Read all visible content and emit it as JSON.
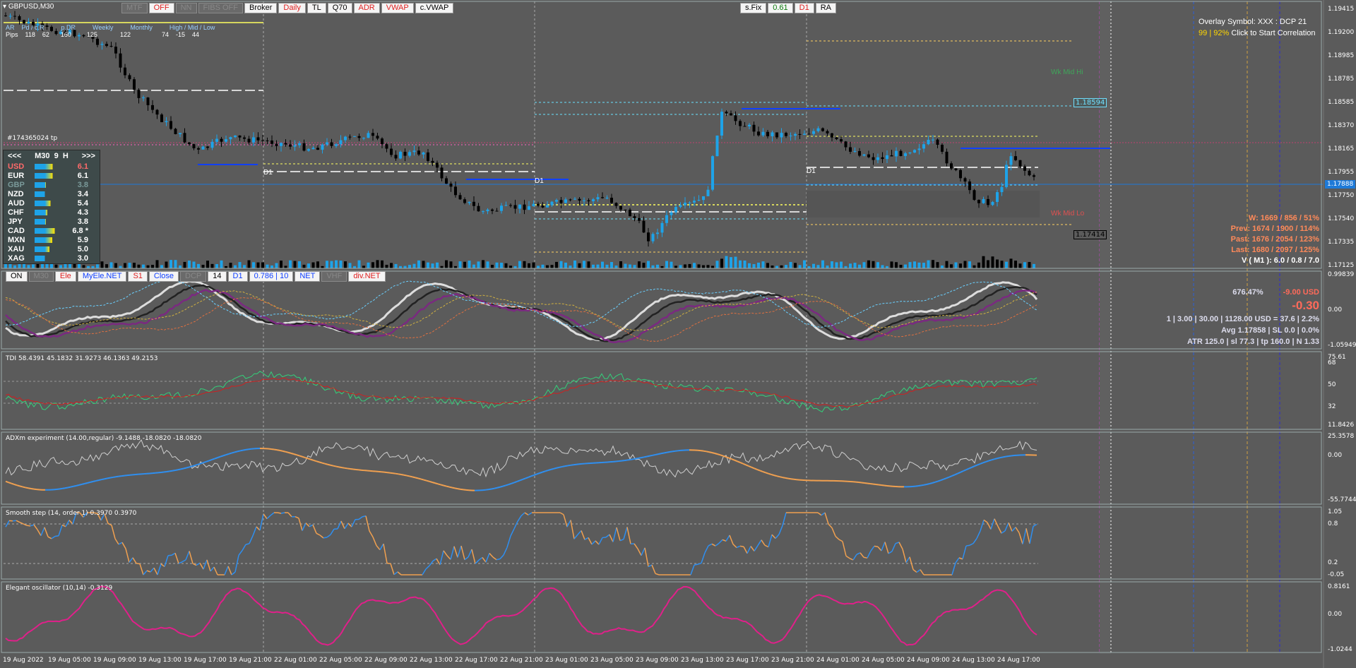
{
  "window": {
    "symbol_title": "GBPUSD,M30"
  },
  "toolbar_top": [
    {
      "label": "MTF",
      "style": "dim"
    },
    {
      "label": "OFF",
      "style": "red"
    },
    {
      "label": "NN",
      "style": "dim"
    },
    {
      "label": "FIBS OFF",
      "style": "dim"
    },
    {
      "label": "Broker",
      "style": "plain"
    },
    {
      "label": "Daily",
      "style": "red"
    },
    {
      "label": "TL",
      "style": "plain"
    },
    {
      "label": "Q70",
      "style": "plain"
    },
    {
      "label": "ADR",
      "style": "red"
    },
    {
      "label": "VWAP",
      "style": "red"
    },
    {
      "label": "c.VWAP",
      "style": "plain"
    }
  ],
  "toolbar_sfix": [
    {
      "label": "s.Fix",
      "style": "plain"
    },
    {
      "label": "0.61",
      "style": "grn"
    },
    {
      "label": "D1",
      "style": "red"
    },
    {
      "label": "RA",
      "style": "plain"
    }
  ],
  "toolbar_indicator": [
    {
      "label": "ON",
      "style": "plain"
    },
    {
      "label": "M30",
      "style": "dim"
    },
    {
      "label": "Ele",
      "style": "red"
    },
    {
      "label": "MyEle.NET",
      "style": "blue"
    },
    {
      "label": "S1",
      "style": "red"
    },
    {
      "label": "Close",
      "style": "blue"
    },
    {
      "label": "DCP",
      "style": "dim"
    },
    {
      "label": "14",
      "style": "plain"
    },
    {
      "label": "D1",
      "style": "blue"
    },
    {
      "label": "0.786 | 10",
      "style": "blue"
    },
    {
      "label": "NET",
      "style": "blue"
    },
    {
      "label": "VHF",
      "style": "dim"
    },
    {
      "label": "div.NET",
      "style": "red"
    }
  ],
  "adr_table": {
    "headers": [
      "AR",
      "Pd / c.R",
      "p.DR",
      "Weekly",
      "Monthly",
      "High / Mid / Low"
    ],
    "row_label": "Pips",
    "values": [
      "118",
      "62",
      "160",
      "125",
      "122",
      "74",
      "-15",
      "44"
    ]
  },
  "ticket_label": "#174365024 tp",
  "strength_panel": {
    "prev": "<<<",
    "timeframe": "M30",
    "bars": "9",
    "mode": "H",
    "next": ">>>",
    "rows": [
      {
        "cur": "USD",
        "val": "6.1",
        "level": 0.61,
        "color": "#ff6a6a"
      },
      {
        "cur": "EUR",
        "val": "6.1",
        "level": 0.61,
        "color": "#ffffff"
      },
      {
        "cur": "GBP",
        "val": "3.8",
        "level": 0.38,
        "color": "#7a9a9a"
      },
      {
        "cur": "NZD",
        "val": "3.4",
        "level": 0.34,
        "color": "#ffffff"
      },
      {
        "cur": "AUD",
        "val": "5.4",
        "level": 0.54,
        "color": "#ffffff"
      },
      {
        "cur": "CHF",
        "val": "4.3",
        "level": 0.43,
        "color": "#ffffff"
      },
      {
        "cur": "JPY",
        "val": "3.8",
        "level": 0.38,
        "color": "#ffffff"
      },
      {
        "cur": "CAD",
        "val": "6.8 *",
        "level": 0.68,
        "color": "#ffffff"
      },
      {
        "cur": "MXN",
        "val": "5.9",
        "level": 0.59,
        "color": "#ffffff"
      },
      {
        "cur": "XAU",
        "val": "5.0",
        "level": 0.5,
        "color": "#ffffff"
      },
      {
        "cur": "XAG",
        "val": "3.0",
        "level": 0.3,
        "color": "#ffffff"
      }
    ]
  },
  "overlay": {
    "line1": "Overlay Symbol: XXX : DCP 21",
    "line2_a": "99",
    "line2_sep": "|",
    "line2_b": "92%",
    "line2_c": "Click to Start Correlation"
  },
  "main_labels": {
    "wk_mid_hi": "Wk Mid Hi",
    "wk_mid_lo": "Wk Mid Lo",
    "d1_a": "D1",
    "d1_b": "D1",
    "d1_c": "D1",
    "box_high": "1.18594",
    "box_low": "1.17414",
    "current_price": "1.17888"
  },
  "stats_right": {
    "w": "W: 1669 / 856 / 51%",
    "prev": "Prev: 1674 / 1900 / 114%",
    "past": "Past: 1676 / 2054 / 123%",
    "last": "Last: 1680 / 2097 / 125%",
    "v": "V ( M1 ): 6.0 / 0.8 / 7.0"
  },
  "trade_info": {
    "pct": "676.47%",
    "usd": "-9.00 USD",
    "big": "-0.30",
    "line1": "1  |  3.00  |  30.00  |  1128.00 USD = 37.6  |  2.2%",
    "line2": "Avg 1.17858  |  SL 0.0  |  0.0%",
    "line3": "ATR 125.0  |  sl 77.3  |  tp 160.0  |  N 1.33"
  },
  "price_axis": [
    "1.19415",
    "1.19200",
    "1.18985",
    "1.18785",
    "1.18585",
    "1.18370",
    "1.18165",
    "1.17955",
    "1.17750",
    "1.17540",
    "1.17335",
    "1.17125"
  ],
  "subwindows": {
    "osc1_axis": [
      "0.99839",
      "0.00",
      "-1.05949"
    ],
    "tdi_title": "TDI 58.4391 45.1832 31.9273 46.1363 49.2153",
    "tdi_axis": [
      "75.61",
      "68",
      "50",
      "32",
      "11.8426"
    ],
    "adx_title": "ADXm experiment (14.00,regular) -9.1488 -18.0820 -18.0820",
    "adx_axis": [
      "25.3578",
      "0.00",
      "-55.7744"
    ],
    "smooth_title": "Smooth step (14, order 1) 0.3970 0.3970",
    "smooth_axis": [
      "1.05",
      "0.8",
      "0.2",
      "-0.05"
    ],
    "elegant_title": "Elegant oscillator (10,14) -0.3129",
    "elegant_axis": [
      "0.8161",
      "0.00",
      "-1.0244"
    ]
  },
  "time_axis": [
    "19 Aug 2022",
    "19 Aug 05:00",
    "19 Aug 09:00",
    "19 Aug 13:00",
    "19 Aug 17:00",
    "19 Aug 21:00",
    "22 Aug 01:00",
    "22 Aug 05:00",
    "22 Aug 09:00",
    "22 Aug 13:00",
    "22 Aug 17:00",
    "22 Aug 21:00",
    "23 Aug 01:00",
    "23 Aug 05:00",
    "23 Aug 09:00",
    "23 Aug 13:00",
    "23 Aug 17:00",
    "23 Aug 21:00",
    "24 Aug 01:00",
    "24 Aug 05:00",
    "24 Aug 09:00",
    "24 Aug 13:00",
    "24 Aug 17:00"
  ],
  "colors": {
    "bg": "#5b5b5b",
    "bull": "#1ea3e8",
    "bear": "#000000",
    "tdi_green": "#34d07a",
    "tdi_red": "#d02020",
    "adx_blue": "#2f8ff0",
    "adx_orange": "#f0a050",
    "elegant": "#e0208a"
  }
}
